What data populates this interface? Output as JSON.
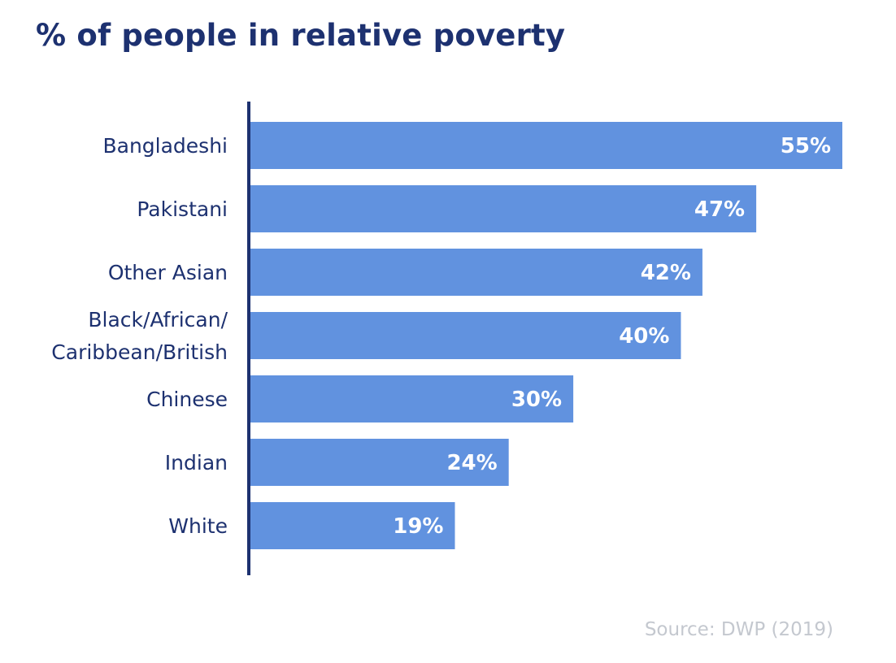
{
  "chart_data": {
    "type": "bar",
    "orientation": "horizontal",
    "title": "% of people in relative poverty",
    "categories": [
      [
        "Bangladeshi"
      ],
      [
        "Pakistani"
      ],
      [
        "Other Asian"
      ],
      [
        "Black/African/",
        "Caribbean/British"
      ],
      [
        "Chinese"
      ],
      [
        "Indian"
      ],
      [
        "White"
      ]
    ],
    "values": [
      55,
      47,
      42,
      40,
      30,
      24,
      19
    ],
    "value_labels": [
      "55%",
      "47%",
      "42%",
      "40%",
      "30%",
      "24%",
      "19%"
    ],
    "xlim": [
      0,
      55
    ],
    "grid": false,
    "legend": "none",
    "bar_color": "#6192df",
    "axis_color": "#1d3170",
    "label_color": "#1d3170"
  },
  "source": "Source: DWP (2019)"
}
